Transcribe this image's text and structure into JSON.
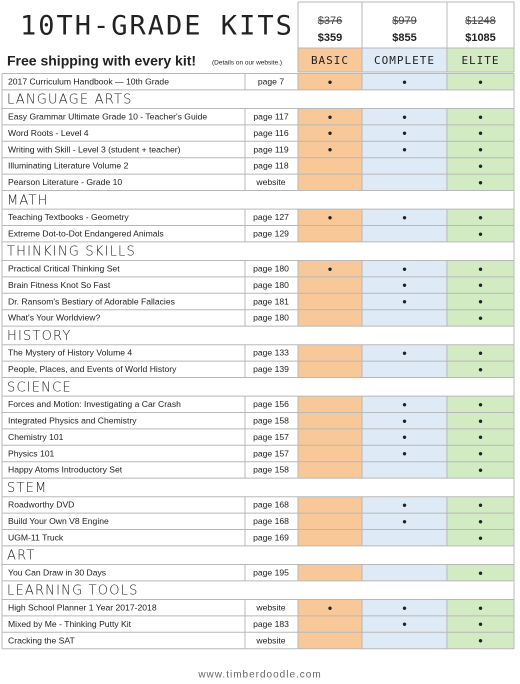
{
  "header": {
    "title": "10TH-GRADE KITS",
    "shipping": "Free shipping with every kit!",
    "note": "(Details on our website.)"
  },
  "kits": [
    {
      "name": "BASIC",
      "old_price": "$376",
      "price": "$359",
      "color": "#f9c899"
    },
    {
      "name": "COMPLETE",
      "old_price": "$979",
      "price": "$855",
      "color": "#dfeaf7"
    },
    {
      "name": "ELITE",
      "old_price": "$1248",
      "price": "$1085",
      "color": "#d3ebc3"
    }
  ],
  "intro": {
    "name": "2017 Curriculum Handbook — 10th Grade",
    "page": "page 7",
    "marks": [
      "●",
      "●",
      "●"
    ]
  },
  "sections": [
    {
      "title": "LANGUAGE ARTS",
      "items": [
        {
          "name": "Easy Grammar Ultimate Grade 10 - Teacher's Guide",
          "page": "page 117",
          "marks": [
            "●",
            "●",
            "●"
          ]
        },
        {
          "name": "Word Roots - Level 4",
          "page": "page 116",
          "marks": [
            "●",
            "●",
            "●"
          ]
        },
        {
          "name": "Writing with Skill - Level 3  (student + teacher)",
          "page": "page 119",
          "marks": [
            "●",
            "●",
            "●"
          ]
        },
        {
          "name": "Illuminating Literature  Volume 2",
          "page": "page 118",
          "marks": [
            null,
            null,
            "●"
          ]
        },
        {
          "name": "Pearson Literature - Grade 10",
          "page": "website",
          "marks": [
            null,
            null,
            "●"
          ]
        }
      ]
    },
    {
      "title": "MATH",
      "items": [
        {
          "name": "Teaching Textbooks - Geometry",
          "page": "page 127",
          "marks": [
            "●",
            "●",
            "●"
          ]
        },
        {
          "name": "Extreme Dot-to-Dot Endangered Animals",
          "page": "page 129",
          "marks": [
            null,
            null,
            "●"
          ]
        }
      ]
    },
    {
      "title": "THINKING SKILLS",
      "items": [
        {
          "name": "Practical Critical Thinking Set",
          "page": "page 180",
          "marks": [
            "●",
            "●",
            "●"
          ]
        },
        {
          "name": "Brain Fitness Knot So Fast",
          "page": "page 180",
          "marks": [
            null,
            "●",
            "●"
          ]
        },
        {
          "name": "Dr. Ransom's Bestiary of Adorable Fallacies",
          "page": "page 181",
          "marks": [
            null,
            "●",
            "●"
          ]
        },
        {
          "name": "What's Your Worldview?",
          "page": "page 180",
          "marks": [
            null,
            null,
            "●"
          ]
        }
      ]
    },
    {
      "title": "HISTORY",
      "items": [
        {
          "name": "The Mystery of History Volume 4",
          "page": "page 133",
          "marks": [
            null,
            "●",
            "●"
          ]
        },
        {
          "name": "People, Places, and Events of World History",
          "page": "page 139",
          "marks": [
            null,
            null,
            "●"
          ]
        }
      ]
    },
    {
      "title": "SCIENCE",
      "items": [
        {
          "name": "Forces and Motion:  Investigating a Car Crash",
          "page": "page 156",
          "marks": [
            null,
            "●",
            "●"
          ]
        },
        {
          "name": "Integrated Physics and Chemistry",
          "page": "page 158",
          "marks": [
            null,
            "●",
            "●"
          ]
        },
        {
          "name": "Chemistry 101",
          "page": "page 157",
          "marks": [
            null,
            "●",
            "●"
          ]
        },
        {
          "name": "Physics 101",
          "page": "page 157",
          "marks": [
            null,
            "●",
            "●"
          ]
        },
        {
          "name": "Happy Atoms Introductory Set",
          "page": "page 158",
          "marks": [
            null,
            null,
            "●"
          ]
        }
      ]
    },
    {
      "title": "STEM",
      "items": [
        {
          "name": "Roadworthy DVD",
          "page": "page 168",
          "marks": [
            null,
            "●",
            "●"
          ]
        },
        {
          "name": "Build Your Own V8 Engine",
          "page": "page 168",
          "marks": [
            null,
            "●",
            "●"
          ]
        },
        {
          "name": "UGM-11 Truck",
          "page": "page 169",
          "marks": [
            null,
            null,
            "●"
          ]
        }
      ]
    },
    {
      "title": "ART",
      "items": [
        {
          "name": "You Can Draw in 30 Days",
          "page": "page 195",
          "marks": [
            null,
            null,
            "●"
          ]
        }
      ]
    },
    {
      "title": "LEARNING TOOLS",
      "items": [
        {
          "name": "High School Planner 1 Year 2017-2018",
          "page": "website",
          "marks": [
            "●",
            "●",
            "●"
          ]
        },
        {
          "name": "Mixed by Me - Thinking Putty Kit",
          "page": "page 183",
          "marks": [
            null,
            "●",
            "●"
          ]
        },
        {
          "name": "Cracking the SAT",
          "page": "website",
          "marks": [
            null,
            null,
            "●"
          ]
        }
      ]
    }
  ],
  "footer": "www.timberdoodle.com"
}
